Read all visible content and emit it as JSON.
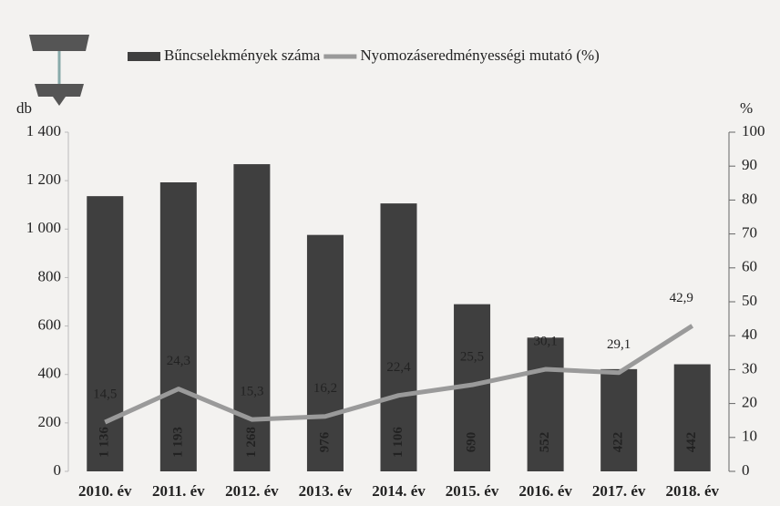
{
  "chart_data": {
    "type": "bar",
    "legend": "top",
    "ylabel": "db",
    "y2label": "%",
    "categories": [
      "2010. év",
      "2011. év",
      "2012. év",
      "2013. év",
      "2014. év",
      "2015. év",
      "2016. év",
      "2017. év",
      "2018. év"
    ],
    "series": [
      {
        "name": "Bűncselekmények száma",
        "type": "bar",
        "color": "#3f3f3f",
        "values": [
          1136,
          1193,
          1268,
          976,
          1106,
          690,
          552,
          422,
          442
        ],
        "value_labels": [
          "1 136",
          "1 193",
          "1 268",
          "976",
          "1 106",
          "690",
          "552",
          "422",
          "442"
        ]
      },
      {
        "name": "Nyomozáseredményességi mutató (%)",
        "type": "line",
        "axis": "y2",
        "color": "#9a9a9a",
        "values": [
          14.5,
          24.3,
          15.3,
          16.2,
          22.4,
          25.5,
          30.1,
          29.1,
          42.9
        ],
        "value_labels": [
          "14,5",
          "24,3",
          "15,3",
          "16,2",
          "22,4",
          "25,5",
          "30,1",
          "29,1",
          "42,9"
        ]
      }
    ],
    "ylim": [
      0,
      1400
    ],
    "yticks": [
      0,
      200,
      400,
      600,
      800,
      {
        "value": 1000,
        "label": "1 000"
      },
      {
        "value": 1200,
        "label": "1 200"
      },
      {
        "value": 1400,
        "label": "1 400"
      }
    ],
    "y2lim": [
      0,
      100
    ],
    "y2ticks": [
      0,
      10,
      20,
      30,
      40,
      50,
      60,
      70,
      80,
      90,
      100
    ]
  }
}
